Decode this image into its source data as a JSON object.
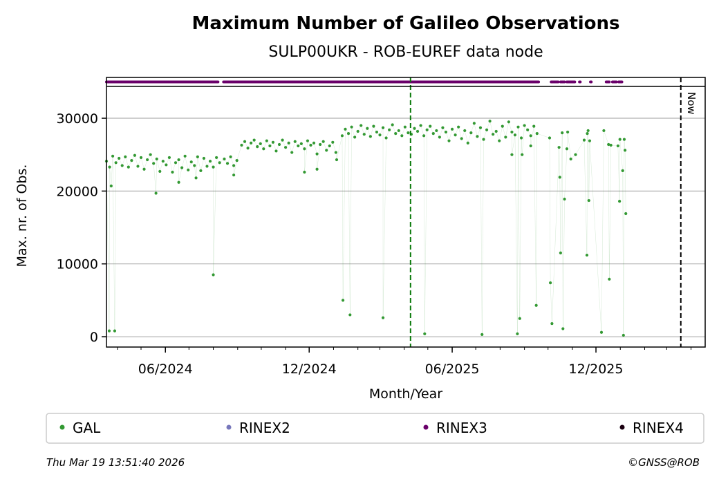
{
  "chart_data": {
    "type": "scatter",
    "title": "Maximum Number of Galileo Observations",
    "subtitle": "SULP00UKR - ROB-EUREF data node",
    "xlabel": "Month/Year",
    "ylabel": "Max. nr. of Obs.",
    "x_origin_date": "2024-03-18",
    "x_units": "days since x_origin_date",
    "xlim": [
      0,
      762
    ],
    "ylim": [
      -1420,
      34370
    ],
    "yticks": [
      0,
      10000,
      20000,
      30000
    ],
    "ytick_labels": [
      "0",
      "10000",
      "20000",
      "30000"
    ],
    "xticks": [
      {
        "day": 75,
        "label": "06/2024"
      },
      {
        "day": 258,
        "label": "12/2024"
      },
      {
        "day": 440,
        "label": "06/2025"
      },
      {
        "day": 623,
        "label": "12/2025"
      }
    ],
    "minor_xticks": [
      14,
      44,
      75,
      105,
      136,
      167,
      197,
      228,
      258,
      289,
      320,
      348,
      379,
      409,
      440,
      470,
      501,
      532,
      562,
      593,
      623,
      654,
      685,
      713,
      744
    ],
    "grid": "horizontal",
    "now_line": {
      "day": 731,
      "label": "Now"
    },
    "marker_line_day": 387,
    "series": [
      {
        "name": "GAL",
        "color": "#339933",
        "dense_segments": [
          {
            "start": 0,
            "step": 4,
            "values": [
              24100,
              23300,
              24800,
              23900,
              24500,
              23500,
              24700,
              23300,
              24200,
              24900,
              23400,
              24600,
              23000,
              24300,
              25000,
              23800,
              24400,
              22700,
              24100,
              23600,
              24600,
              22600,
              23900,
              24300,
              23200,
              24800,
              22900,
              24000,
              23500,
              24700,
              22800,
              24500,
              23400,
              24100,
              23300,
              24600,
              23900
            ]
          },
          {
            "start": 150,
            "step": 4,
            "values": [
              24400,
              23800,
              24700,
              23500,
              24200
            ]
          },
          {
            "start": 172,
            "step": 4,
            "values": [
              26300,
              26800,
              25900,
              26600,
              27000,
              26100,
              26500,
              25800,
              26900,
              26200,
              26700,
              25500,
              26400,
              27000,
              26000,
              26600,
              25300,
              26800,
              26200,
              26500,
              25800,
              26900,
              26300,
              26600,
              25100,
              26400,
              26800,
              25600,
              26200,
              26700,
              25300
            ]
          },
          {
            "start": 300,
            "step": 4,
            "values": [
              27600,
              28500,
              27900,
              28800,
              27400,
              28200,
              29000,
              27800,
              28600,
              27500,
              28900,
              28100,
              27700,
              28700,
              27300,
              28400,
              29100,
              27900,
              28300,
              27600,
              28800,
              28000
            ]
          },
          {
            "start": 388,
            "step": 4,
            "values": [
              27800,
              28600,
              28200,
              29000,
              27600,
              28400,
              28900,
              27900,
              28300,
              27400,
              28700,
              28100,
              26900,
              28500,
              27700,
              28800,
              27200,
              28300,
              26600,
              28000,
              29300,
              27500,
              28700,
              27100,
              28400,
              29600,
              27800,
              28200,
              26900,
              28900,
              27400,
              29500,
              28100,
              27700,
              28800,
              27300,
              29000,
              28400,
              27600,
              28900,
              27900
            ]
          }
        ],
        "points": [
          [
            3.5,
            800
          ],
          [
            10.5,
            800
          ],
          [
            6,
            20700
          ],
          [
            63,
            19700
          ],
          [
            92,
            21200
          ],
          [
            114,
            21800
          ],
          [
            136,
            8500
          ],
          [
            162,
            22200
          ],
          [
            252,
            22600
          ],
          [
            268,
            23000
          ],
          [
            293,
            24300
          ],
          [
            301,
            5000
          ],
          [
            310,
            3000
          ],
          [
            352,
            2600
          ],
          [
            405,
            400
          ],
          [
            478,
            300
          ],
          [
            523,
            400
          ],
          [
            526,
            2500
          ],
          [
            547,
            4300
          ],
          [
            516,
            25000
          ],
          [
            529,
            25000
          ],
          [
            540,
            26200
          ],
          [
            564,
            27300
          ],
          [
            565,
            7400
          ],
          [
            567,
            1800
          ],
          [
            576,
            26000
          ],
          [
            577,
            21900
          ],
          [
            578,
            11500
          ],
          [
            580,
            28000
          ],
          [
            581,
            1100
          ],
          [
            583,
            18900
          ],
          [
            586,
            25800
          ],
          [
            587,
            28100
          ],
          [
            591,
            24400
          ],
          [
            597,
            25000
          ],
          [
            608,
            27000
          ],
          [
            611.5,
            11200
          ],
          [
            612,
            27900
          ],
          [
            613,
            28300
          ],
          [
            614,
            18700
          ],
          [
            615,
            26900
          ],
          [
            630,
            600
          ],
          [
            633,
            28300
          ],
          [
            639,
            26400
          ],
          [
            640,
            7900
          ],
          [
            642,
            26300
          ],
          [
            651,
            26200
          ],
          [
            653,
            18600
          ],
          [
            653.5,
            27100
          ],
          [
            657,
            22800
          ],
          [
            658,
            200
          ],
          [
            659,
            27100
          ],
          [
            660,
            25600
          ],
          [
            661,
            16900
          ]
        ]
      }
    ],
    "rinex3_coverage_days": [
      [
        0,
        142
      ],
      [
        149,
        550
      ],
      [
        566,
        575
      ],
      [
        578,
        583
      ],
      [
        586,
        596
      ],
      [
        602,
        603
      ],
      [
        616,
        617
      ],
      [
        636,
        640
      ],
      [
        644,
        649
      ],
      [
        652,
        656
      ]
    ],
    "legend": [
      {
        "label": "GAL",
        "color": "#339933"
      },
      {
        "label": "RINEX2",
        "color": "#7777bb"
      },
      {
        "label": "RINEX3",
        "color": "#6a006a"
      },
      {
        "label": "RINEX4",
        "color": "#1a0010"
      }
    ],
    "legend_placement": "bottom"
  },
  "footer": {
    "timestamp": "Thu Mar 19 13:51:40 2026",
    "credit": "©GNSS@ROB"
  }
}
